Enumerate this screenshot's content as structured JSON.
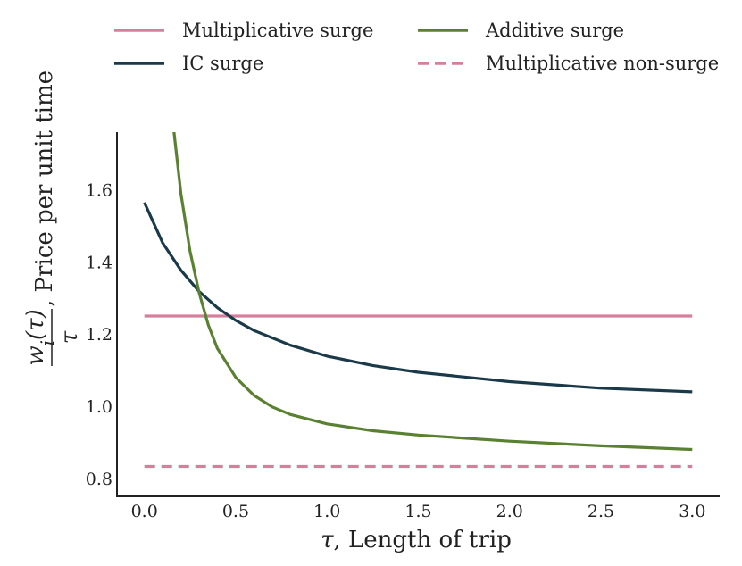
{
  "chart_data": {
    "type": "line",
    "title": "",
    "xlabel": {
      "symbol": "τ",
      "text": ", Length of trip"
    },
    "ylabel": {
      "numerator": "w",
      "numerator_sub": "i",
      "numerator_arg": "(τ)",
      "denominator": "τ",
      "text": ", Price per unit time"
    },
    "xlim": [
      -0.15,
      3.15
    ],
    "ylim": [
      0.75,
      1.76
    ],
    "xticks": [
      0.0,
      0.5,
      1.0,
      1.5,
      2.0,
      2.5,
      3.0
    ],
    "xtick_labels": [
      "0.0",
      "0.5",
      "1.0",
      "1.5",
      "2.0",
      "2.5",
      "3.0"
    ],
    "yticks": [
      0.8,
      1.0,
      1.2,
      1.4,
      1.6
    ],
    "ytick_labels": [
      "0.8",
      "1.0",
      "1.2",
      "1.4",
      "1.6"
    ],
    "grid": false,
    "legend_position": "top",
    "series": [
      {
        "name": "Multiplicative surge",
        "color": "#d4809d",
        "dash": "solid",
        "x": [
          0.0,
          3.0
        ],
        "y": [
          1.25,
          1.25
        ]
      },
      {
        "name": "IC surge",
        "color": "#1a3a4a",
        "dash": "solid",
        "x": [
          0.0,
          0.1,
          0.2,
          0.3,
          0.4,
          0.5,
          0.6,
          0.8,
          1.0,
          1.25,
          1.5,
          2.0,
          2.5,
          3.0
        ],
        "y": [
          1.565,
          1.453,
          1.377,
          1.318,
          1.273,
          1.238,
          1.21,
          1.169,
          1.139,
          1.113,
          1.094,
          1.068,
          1.05,
          1.04
        ]
      },
      {
        "name": "Additive surge",
        "color": "#5a8032",
        "dash": "solid",
        "x": [
          0.16,
          0.2,
          0.25,
          0.3,
          0.35,
          0.4,
          0.5,
          0.6,
          0.7,
          0.8,
          1.0,
          1.25,
          1.5,
          2.0,
          2.5,
          3.0
        ],
        "y": [
          1.77,
          1.59,
          1.43,
          1.315,
          1.225,
          1.16,
          1.08,
          1.03,
          0.998,
          0.977,
          0.951,
          0.932,
          0.92,
          0.903,
          0.89,
          0.88
        ]
      },
      {
        "name": "Multiplicative non-surge",
        "color": "#d4809d",
        "dash": "dashed",
        "x": [
          0.0,
          3.0
        ],
        "y": [
          0.833,
          0.833
        ]
      }
    ]
  }
}
